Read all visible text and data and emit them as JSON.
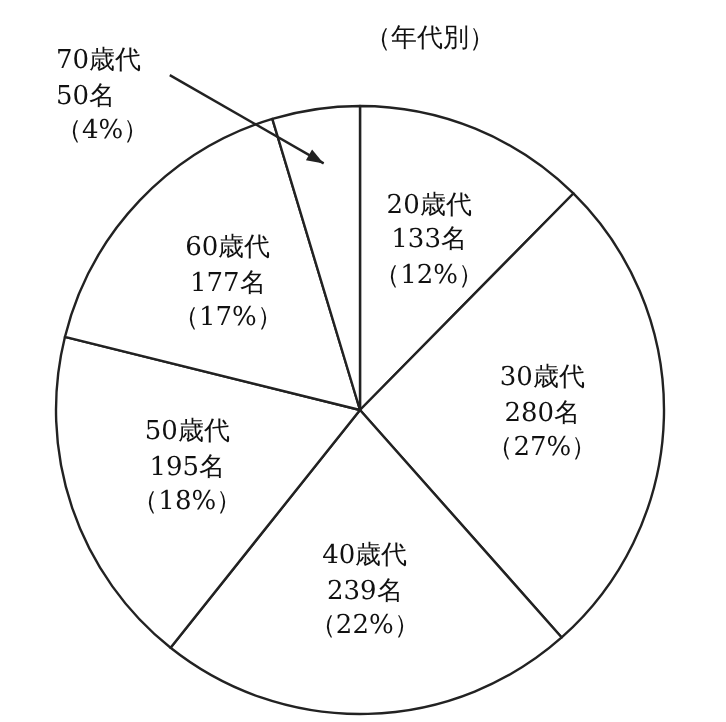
{
  "chart_data": {
    "type": "pie",
    "title": "（年代別）",
    "categories": [
      "20歳代",
      "30歳代",
      "40歳代",
      "50歳代",
      "60歳代",
      "70歳代"
    ],
    "values": [
      133,
      280,
      239,
      195,
      177,
      50
    ],
    "value_labels": [
      "133名（12%）",
      "280名（27%）",
      "239名（22%）",
      "195名（18%）",
      "177名（17%）",
      "50名（4%）"
    ],
    "colors": [
      "#ffffff",
      "#ffffff",
      "#ffffff",
      "#ffffff",
      "#ffffff",
      "#ffffff"
    ]
  }
}
